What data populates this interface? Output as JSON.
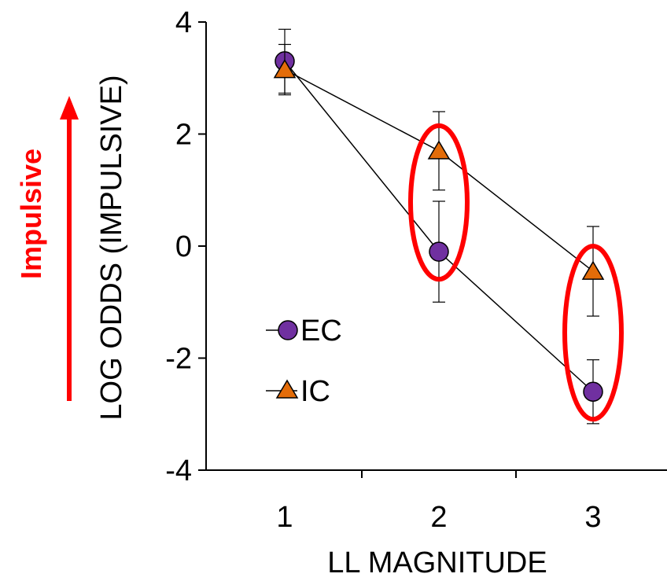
{
  "chart_data": {
    "type": "line",
    "xlabel": "LL MAGNITUDE",
    "ylabel": "LOG ODDS (IMPULSIVE)",
    "x": [
      1,
      2,
      3
    ],
    "ylim": [
      -4,
      4
    ],
    "yticks": [
      "4",
      "2",
      "0",
      "-2",
      "-4"
    ],
    "xticks": [
      "1",
      "2",
      "3"
    ],
    "grid": false,
    "legend_position": "lower-left",
    "series": [
      {
        "name": "EC",
        "marker": "circle",
        "color": "#7030A0",
        "values": [
          3.3,
          -0.1,
          -2.6
        ],
        "error": [
          0.57,
          0.9,
          0.57
        ]
      },
      {
        "name": "IC",
        "marker": "triangle",
        "color": "#E36C09",
        "values": [
          3.15,
          1.7,
          -0.45
        ],
        "error": [
          0.45,
          0.7,
          0.8
        ]
      }
    ],
    "annotations": {
      "arrow_label": "Impulsive",
      "arrow_color": "#FF0000",
      "highlight_color": "#FF0000",
      "highlighted_x": [
        2,
        3
      ]
    }
  }
}
